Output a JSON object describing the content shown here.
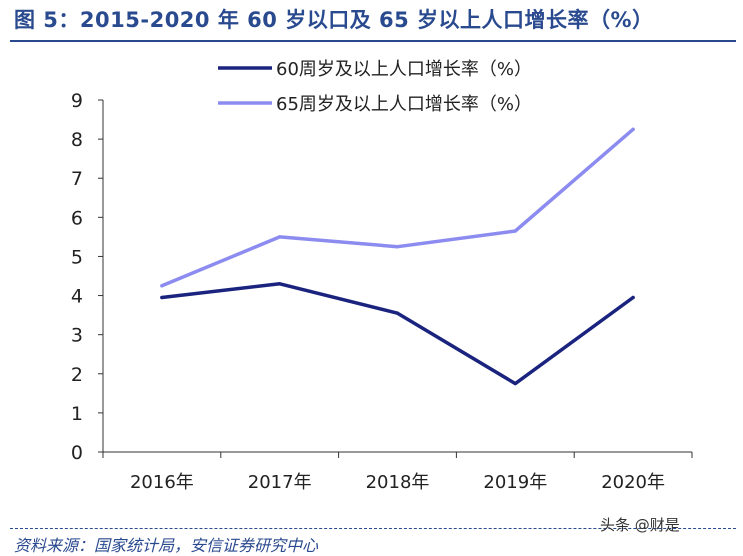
{
  "header": {
    "title": "图 5：2015-2020 年 60 岁以口及 65 岁以上人口增长率（%）"
  },
  "footer": {
    "source": "资料来源：国家统计局，安信证券研究中心",
    "watermark": "头条 @财是"
  },
  "chart_data": {
    "type": "line",
    "title": "",
    "xlabel": "",
    "ylabel": "",
    "categories": [
      "2016年",
      "2017年",
      "2018年",
      "2019年",
      "2020年"
    ],
    "ylim": [
      0,
      9
    ],
    "yticks": [
      "0",
      "1",
      "2",
      "3",
      "4",
      "5",
      "6",
      "7",
      "8",
      "9"
    ],
    "grid": false,
    "legend": "top-center",
    "series": [
      {
        "name": "60周岁及以上人口增长率（%）",
        "values": [
          3.95,
          4.3,
          3.55,
          1.75,
          3.95
        ],
        "color": "#1a237e"
      },
      {
        "name": "65周岁及以上人口增长率（%）",
        "values": [
          4.25,
          5.5,
          5.25,
          5.65,
          8.25
        ],
        "color": "#8c8cf0"
      }
    ]
  }
}
